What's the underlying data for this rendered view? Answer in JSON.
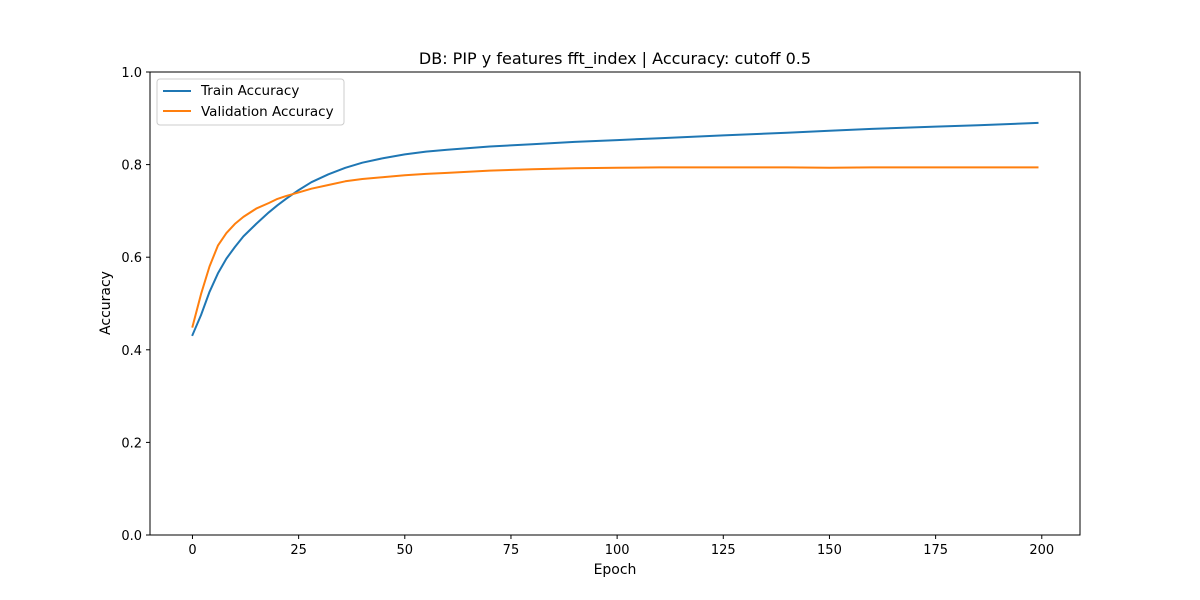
{
  "chart_data": {
    "type": "line",
    "title": "DB: PIP y features fft_index | Accuracy: cutoff 0.5",
    "xlabel": "Epoch",
    "ylabel": "Accuracy",
    "xlim": [
      -10,
      209
    ],
    "ylim": [
      0.0,
      1.0
    ],
    "xticks": [
      0,
      25,
      50,
      75,
      100,
      125,
      150,
      175,
      200
    ],
    "xtick_labels": [
      "0",
      "25",
      "50",
      "75",
      "100",
      "125",
      "150",
      "175",
      "200"
    ],
    "yticks": [
      0.0,
      0.2,
      0.4,
      0.6,
      0.8,
      1.0
    ],
    "ytick_labels": [
      "0.0",
      "0.2",
      "0.4",
      "0.6",
      "0.8",
      "1.0"
    ],
    "grid": false,
    "legend_position": "top-left",
    "series": [
      {
        "name": "Train Accuracy",
        "color": "#1f77b4",
        "x": [
          0,
          2,
          4,
          6,
          8,
          10,
          12,
          15,
          18,
          20,
          22,
          25,
          28,
          32,
          36,
          40,
          45,
          50,
          55,
          60,
          70,
          80,
          90,
          100,
          110,
          125,
          140,
          150,
          160,
          175,
          185,
          199
        ],
        "y": [
          0.432,
          0.475,
          0.525,
          0.565,
          0.597,
          0.622,
          0.645,
          0.672,
          0.697,
          0.712,
          0.726,
          0.745,
          0.762,
          0.779,
          0.793,
          0.804,
          0.814,
          0.822,
          0.828,
          0.832,
          0.839,
          0.844,
          0.849,
          0.853,
          0.857,
          0.863,
          0.869,
          0.873,
          0.877,
          0.882,
          0.885,
          0.89
        ]
      },
      {
        "name": "Validation Accuracy",
        "color": "#ff7f0e",
        "x": [
          0,
          2,
          4,
          6,
          8,
          10,
          12,
          15,
          18,
          20,
          22,
          25,
          28,
          32,
          36,
          40,
          45,
          50,
          55,
          60,
          70,
          80,
          90,
          100,
          110,
          125,
          140,
          150,
          160,
          175,
          185,
          199
        ],
        "y": [
          0.45,
          0.52,
          0.58,
          0.625,
          0.652,
          0.672,
          0.687,
          0.705,
          0.717,
          0.726,
          0.732,
          0.74,
          0.748,
          0.756,
          0.764,
          0.769,
          0.773,
          0.777,
          0.78,
          0.782,
          0.787,
          0.79,
          0.792,
          0.793,
          0.794,
          0.794,
          0.794,
          0.793,
          0.794,
          0.794,
          0.794,
          0.794
        ]
      }
    ]
  }
}
